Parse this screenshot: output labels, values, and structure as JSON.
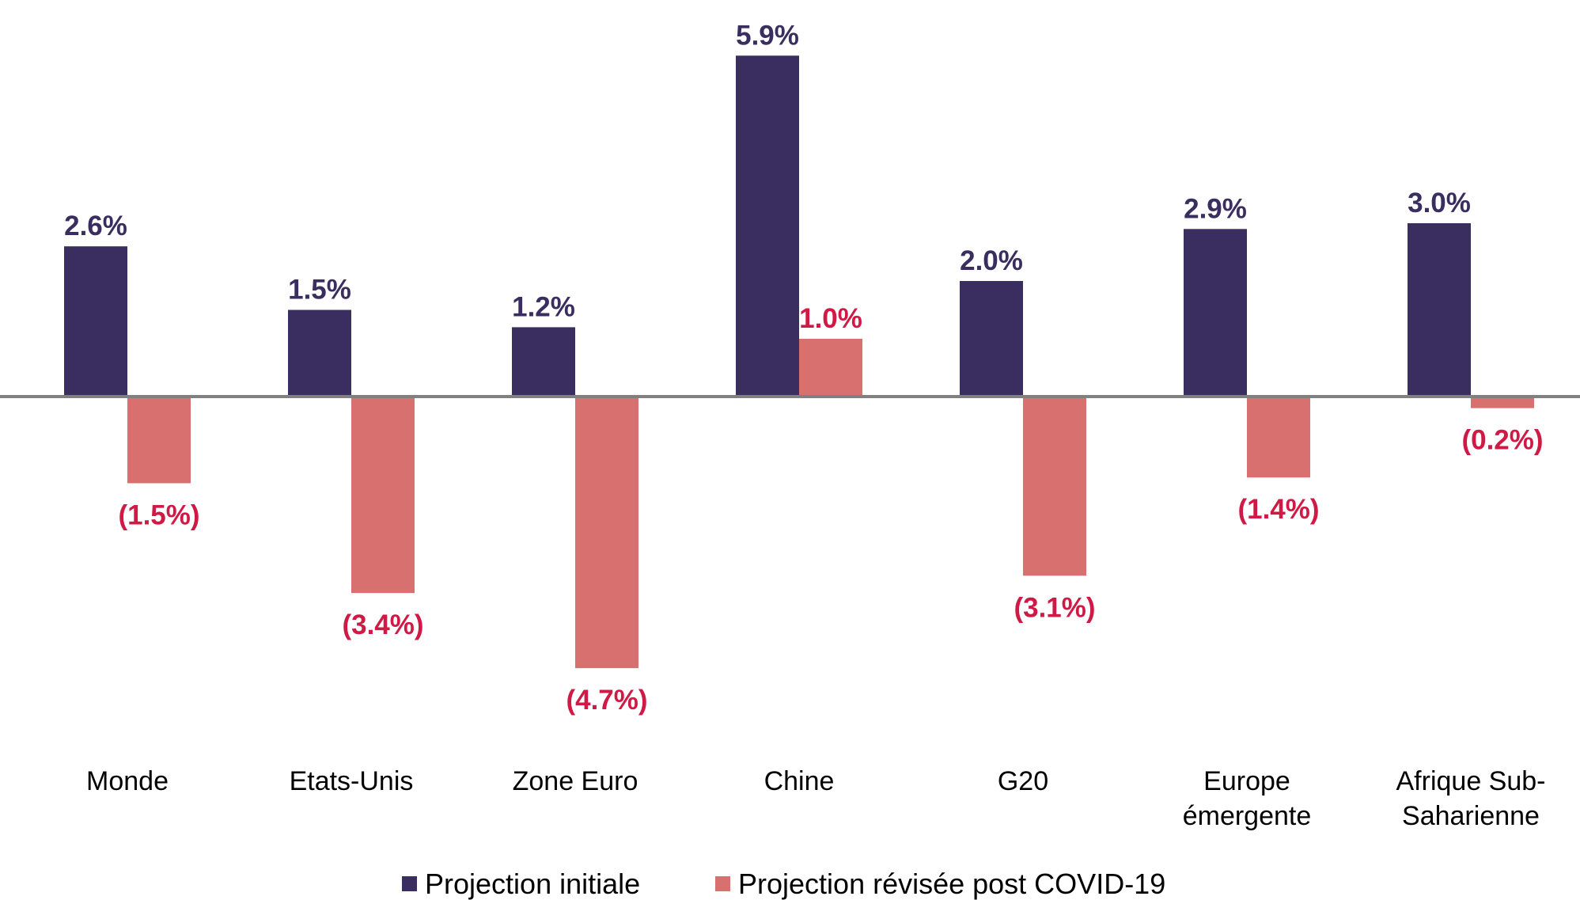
{
  "chart_data": {
    "type": "bar",
    "categories": [
      [
        "Monde"
      ],
      [
        "Etats-Unis"
      ],
      [
        "Zone Euro"
      ],
      [
        "Chine"
      ],
      [
        "G20"
      ],
      [
        "Europe",
        "émergente"
      ],
      [
        "Afrique Sub-",
        "Saharienne"
      ]
    ],
    "series": [
      {
        "name": "Projection initiale",
        "color": "#3a2d5f",
        "label_color": "#3a2d5f",
        "values": [
          2.6,
          1.5,
          1.2,
          5.9,
          2.0,
          2.9,
          3.0
        ],
        "labels": [
          "2.6%",
          "1.5%",
          "1.2%",
          "5.9%",
          "2.0%",
          "2.9%",
          "3.0%"
        ]
      },
      {
        "name": "Projection révisée post COVID-19",
        "color": "#d97070",
        "label_color": "#d01a46",
        "values": [
          -1.5,
          -3.4,
          -4.7,
          1.0,
          -3.1,
          -1.4,
          -0.2
        ],
        "labels": [
          "(1.5%)",
          "(3.4%)",
          "(4.7%)",
          "1.0%",
          "(3.1%)",
          "(1.4%)",
          "(0.2%)"
        ]
      }
    ],
    "axis_color": "#808080",
    "legend_position": "bottom",
    "title": "",
    "xlabel": "",
    "ylabel": ""
  }
}
